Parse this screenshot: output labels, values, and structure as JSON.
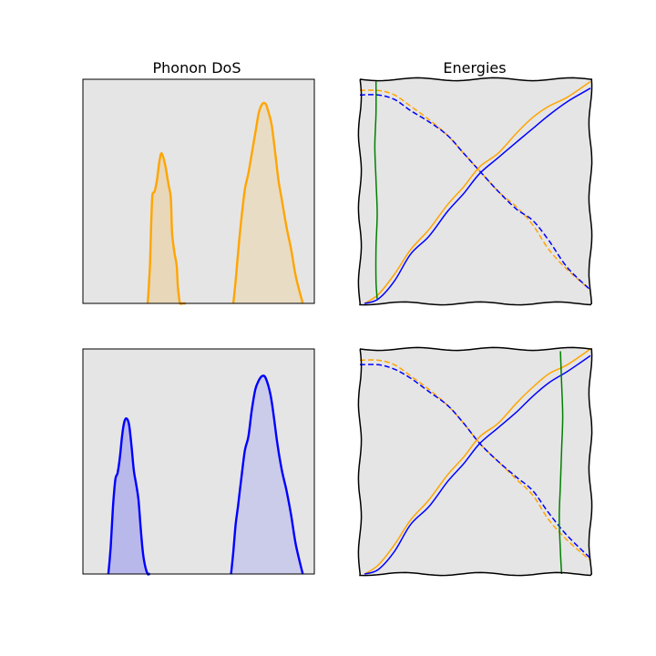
{
  "titles": {
    "dos": "Phonon DoS",
    "energies": "Energies"
  },
  "colors": {
    "orange": "#ffa500",
    "blue": "#0000ff",
    "green": "#008000",
    "axes_bg": "#e5e5e5"
  },
  "chart_data": [
    {
      "type": "area",
      "title": "Phonon DoS",
      "xlim": [
        0,
        1
      ],
      "ylim": [
        0,
        1
      ],
      "series": [
        {
          "color": "orange",
          "fill": "#e8d7b8",
          "x": [
            0.28,
            0.285,
            0.29,
            0.295,
            0.3,
            0.31,
            0.32,
            0.33,
            0.34,
            0.355,
            0.37,
            0.38,
            0.385,
            0.395,
            0.405,
            0.41,
            0.415,
            0.42,
            0.43,
            0.445
          ],
          "y": [
            0.0,
            0.08,
            0.18,
            0.35,
            0.48,
            0.5,
            0.55,
            0.63,
            0.67,
            0.62,
            0.53,
            0.47,
            0.32,
            0.23,
            0.17,
            0.08,
            0.03,
            0.0,
            0.0,
            0.0
          ]
        },
        {
          "color": "orange",
          "fill": "#e8dcc5",
          "x": [
            0.65,
            0.66,
            0.67,
            0.685,
            0.7,
            0.715,
            0.73,
            0.745,
            0.76,
            0.775,
            0.79,
            0.8,
            0.815,
            0.83,
            0.845,
            0.86,
            0.88,
            0.9,
            0.92,
            0.95
          ],
          "y": [
            0.0,
            0.1,
            0.22,
            0.38,
            0.51,
            0.58,
            0.67,
            0.76,
            0.85,
            0.89,
            0.89,
            0.86,
            0.8,
            0.68,
            0.55,
            0.46,
            0.34,
            0.24,
            0.12,
            0.0
          ]
        }
      ]
    },
    {
      "type": "line",
      "title": "Energies",
      "xlim": [
        0,
        1
      ],
      "ylim": [
        0,
        1
      ],
      "series": [
        {
          "color": "orange",
          "dash": true,
          "x": [
            0.0,
            0.08,
            0.15,
            0.22,
            0.3,
            0.38,
            0.45,
            0.52,
            0.6,
            0.68,
            0.75,
            0.82,
            0.9,
            1.0
          ],
          "y": [
            0.95,
            0.95,
            0.93,
            0.88,
            0.82,
            0.75,
            0.67,
            0.59,
            0.5,
            0.43,
            0.35,
            0.24,
            0.15,
            0.06
          ]
        },
        {
          "color": "blue",
          "dash": true,
          "x": [
            0.0,
            0.08,
            0.15,
            0.22,
            0.3,
            0.38,
            0.45,
            0.52,
            0.6,
            0.68,
            0.75,
            0.82,
            0.9,
            1.0
          ],
          "y": [
            0.93,
            0.93,
            0.91,
            0.86,
            0.81,
            0.75,
            0.67,
            0.59,
            0.5,
            0.42,
            0.37,
            0.28,
            0.16,
            0.06
          ]
        },
        {
          "color": "orange",
          "dash": false,
          "x": [
            0.02,
            0.08,
            0.15,
            0.22,
            0.3,
            0.38,
            0.45,
            0.52,
            0.6,
            0.68,
            0.75,
            0.82,
            0.9,
            1.0
          ],
          "y": [
            0.0,
            0.04,
            0.13,
            0.24,
            0.33,
            0.44,
            0.52,
            0.61,
            0.67,
            0.76,
            0.83,
            0.88,
            0.92,
            0.99
          ]
        },
        {
          "color": "blue",
          "dash": false,
          "x": [
            0.02,
            0.08,
            0.15,
            0.22,
            0.3,
            0.38,
            0.45,
            0.52,
            0.6,
            0.68,
            0.75,
            0.82,
            0.9,
            1.0
          ],
          "y": [
            0.0,
            0.02,
            0.1,
            0.22,
            0.3,
            0.41,
            0.49,
            0.58,
            0.65,
            0.72,
            0.78,
            0.84,
            0.9,
            0.96
          ]
        },
        {
          "color": "green",
          "dash": false,
          "x": [
            0.07,
            0.07,
            0.065,
            0.07,
            0.075,
            0.07,
            0.07,
            0.075
          ],
          "y": [
            0.99,
            0.85,
            0.7,
            0.55,
            0.4,
            0.25,
            0.1,
            0.02
          ]
        }
      ]
    },
    {
      "type": "area",
      "xlim": [
        0,
        1
      ],
      "ylim": [
        0,
        1
      ],
      "series": [
        {
          "color": "blue",
          "fill": "#b8b8ea",
          "x": [
            0.11,
            0.12,
            0.13,
            0.14,
            0.15,
            0.16,
            0.17,
            0.18,
            0.19,
            0.2,
            0.21,
            0.22,
            0.23,
            0.24,
            0.25,
            0.26,
            0.27,
            0.28,
            0.285,
            0.29
          ],
          "y": [
            0.0,
            0.12,
            0.3,
            0.42,
            0.45,
            0.52,
            0.62,
            0.68,
            0.69,
            0.66,
            0.57,
            0.46,
            0.4,
            0.33,
            0.2,
            0.09,
            0.03,
            0.0,
            0.0,
            0.0
          ]
        },
        {
          "color": "blue",
          "fill": "#cbcbea",
          "x": [
            0.64,
            0.65,
            0.66,
            0.67,
            0.685,
            0.7,
            0.715,
            0.73,
            0.745,
            0.76,
            0.775,
            0.79,
            0.81,
            0.825,
            0.84,
            0.86,
            0.88,
            0.9,
            0.92,
            0.95
          ],
          "y": [
            0.0,
            0.1,
            0.22,
            0.3,
            0.43,
            0.55,
            0.61,
            0.73,
            0.82,
            0.86,
            0.88,
            0.87,
            0.8,
            0.7,
            0.58,
            0.46,
            0.37,
            0.26,
            0.13,
            0.0
          ]
        }
      ]
    },
    {
      "type": "line",
      "xlim": [
        0,
        1
      ],
      "ylim": [
        0,
        1
      ],
      "series": [
        {
          "color": "orange",
          "dash": true,
          "x": [
            0.0,
            0.08,
            0.15,
            0.22,
            0.3,
            0.38,
            0.45,
            0.52,
            0.6,
            0.68,
            0.75,
            0.82,
            0.9,
            1.0
          ],
          "y": [
            0.95,
            0.95,
            0.93,
            0.88,
            0.82,
            0.75,
            0.67,
            0.58,
            0.5,
            0.42,
            0.35,
            0.24,
            0.15,
            0.06
          ]
        },
        {
          "color": "blue",
          "dash": true,
          "x": [
            0.0,
            0.08,
            0.15,
            0.22,
            0.3,
            0.38,
            0.45,
            0.52,
            0.6,
            0.68,
            0.75,
            0.82,
            0.9,
            1.0
          ],
          "y": [
            0.93,
            0.93,
            0.91,
            0.87,
            0.81,
            0.75,
            0.67,
            0.58,
            0.5,
            0.43,
            0.37,
            0.27,
            0.17,
            0.07
          ]
        },
        {
          "color": "orange",
          "dash": false,
          "x": [
            0.02,
            0.08,
            0.15,
            0.22,
            0.3,
            0.38,
            0.45,
            0.52,
            0.6,
            0.68,
            0.75,
            0.82,
            0.9,
            1.0
          ],
          "y": [
            0.0,
            0.04,
            0.13,
            0.24,
            0.33,
            0.44,
            0.52,
            0.61,
            0.67,
            0.76,
            0.83,
            0.89,
            0.93,
            1.0
          ]
        },
        {
          "color": "blue",
          "dash": false,
          "x": [
            0.02,
            0.08,
            0.15,
            0.22,
            0.3,
            0.38,
            0.45,
            0.52,
            0.6,
            0.68,
            0.75,
            0.82,
            0.9,
            1.0
          ],
          "y": [
            0.0,
            0.02,
            0.1,
            0.22,
            0.3,
            0.41,
            0.49,
            0.58,
            0.65,
            0.72,
            0.79,
            0.85,
            0.9,
            0.97
          ]
        },
        {
          "color": "green",
          "dash": false,
          "x": [
            0.87,
            0.875,
            0.88,
            0.875,
            0.87,
            0.865,
            0.87,
            0.875
          ],
          "y": [
            0.99,
            0.85,
            0.7,
            0.55,
            0.4,
            0.25,
            0.1,
            0.0
          ]
        }
      ]
    }
  ]
}
